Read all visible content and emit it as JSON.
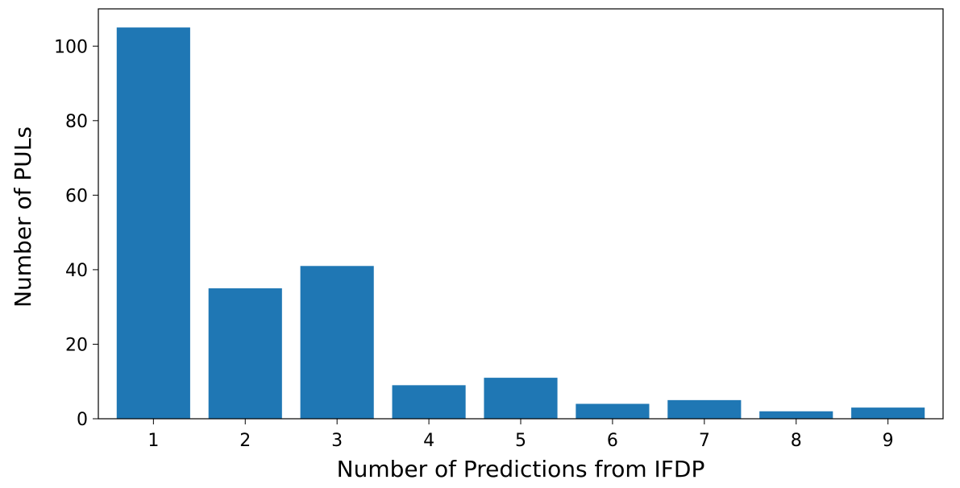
{
  "chart_data": {
    "type": "bar",
    "title": "",
    "xlabel": "Number of Predictions from IFDP",
    "ylabel": "Number of PULs",
    "categories": [
      "1",
      "2",
      "3",
      "4",
      "5",
      "6",
      "7",
      "8",
      "9"
    ],
    "values": [
      105,
      35,
      41,
      9,
      11,
      4,
      5,
      2,
      3
    ],
    "ylim": [
      0,
      110
    ],
    "yticks": [
      0,
      20,
      40,
      60,
      80,
      100
    ],
    "grid": false,
    "legend": "none",
    "bar_color": "#1f77b4"
  }
}
